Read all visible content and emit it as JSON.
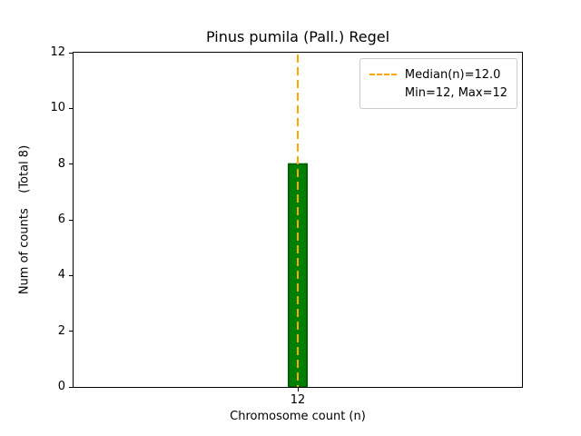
{
  "chart_data": {
    "type": "bar",
    "title": "Pinus pumila (Pall.) Regel",
    "xlabel": "Chromosome count (n)",
    "ylabel": "Num of counts    (Total 8)",
    "total_counts": 8,
    "categories": [
      "12"
    ],
    "values": [
      8
    ],
    "ylim": [
      0,
      12
    ],
    "yticks": [
      0,
      2,
      4,
      6,
      8,
      10,
      12
    ],
    "grid": false,
    "bar_color": "#008000",
    "bar_edge_color": "#006400",
    "median_line": {
      "value": 12,
      "color": "#ffa500",
      "style": "dashed"
    },
    "min": 12,
    "max": 12,
    "legend": {
      "position": "upper right",
      "entries": [
        {
          "symbol": "dashed-line",
          "color": "#ffa500",
          "label": "Median(n)=12.0"
        },
        {
          "symbol": "none",
          "label": "Min=12, Max=12"
        }
      ]
    }
  }
}
